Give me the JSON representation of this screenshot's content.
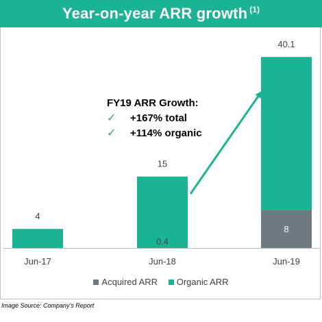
{
  "header": {
    "title": "Year-on-year ARR growth",
    "footnote": "(1)"
  },
  "callout": {
    "heading": "FY19 ARR Growth:",
    "items": [
      {
        "check": "✓",
        "text": "+167% total"
      },
      {
        "check": "✓",
        "text": "+114% organic"
      }
    ]
  },
  "chart_data": {
    "type": "bar",
    "stacked": true,
    "categories": [
      "Jun-17",
      "Jun-18",
      "Jun-19"
    ],
    "series": [
      {
        "name": "Acquired ARR",
        "color": "#6d7b84",
        "values": [
          0,
          0,
          8
        ],
        "labels": [
          "",
          "",
          "8"
        ]
      },
      {
        "name": "Organic ARR",
        "color": "#1ab394",
        "values": [
          4,
          15,
          32.1
        ],
        "labels": [
          "",
          "",
          ""
        ]
      }
    ],
    "totals": [
      "4",
      "15",
      "40.1"
    ],
    "inner_labels": [
      "",
      "0.4",
      ""
    ],
    "ylim": [
      0,
      42
    ],
    "grid": false,
    "legend_position": "bottom"
  },
  "legend": {
    "items": [
      {
        "label": "Acquired ARR",
        "color": "#6d7b84"
      },
      {
        "label": "Organic ARR",
        "color": "#1ab394"
      }
    ]
  },
  "source": "Image Source: Company's Report"
}
